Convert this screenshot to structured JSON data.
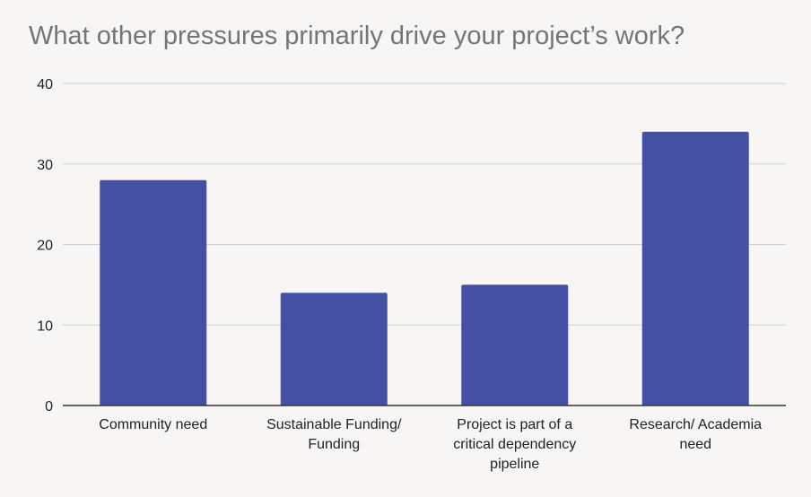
{
  "chart_data": {
    "type": "bar",
    "title": "What other pressures primarily drive your project’s work?",
    "categories": [
      [
        "Community need"
      ],
      [
        "Sustainable Funding/",
        "Funding"
      ],
      [
        "Project is part of a",
        "critical dependency",
        "pipeline"
      ],
      [
        "Research/ Academia",
        "need"
      ]
    ],
    "values": [
      28,
      14,
      15,
      34
    ],
    "ylim": [
      0,
      40
    ],
    "yticks": [
      0,
      10,
      20,
      30,
      40
    ],
    "xlabel": "",
    "ylabel": "",
    "grid": true,
    "legend": "none",
    "bar_color": "#4350a4"
  }
}
